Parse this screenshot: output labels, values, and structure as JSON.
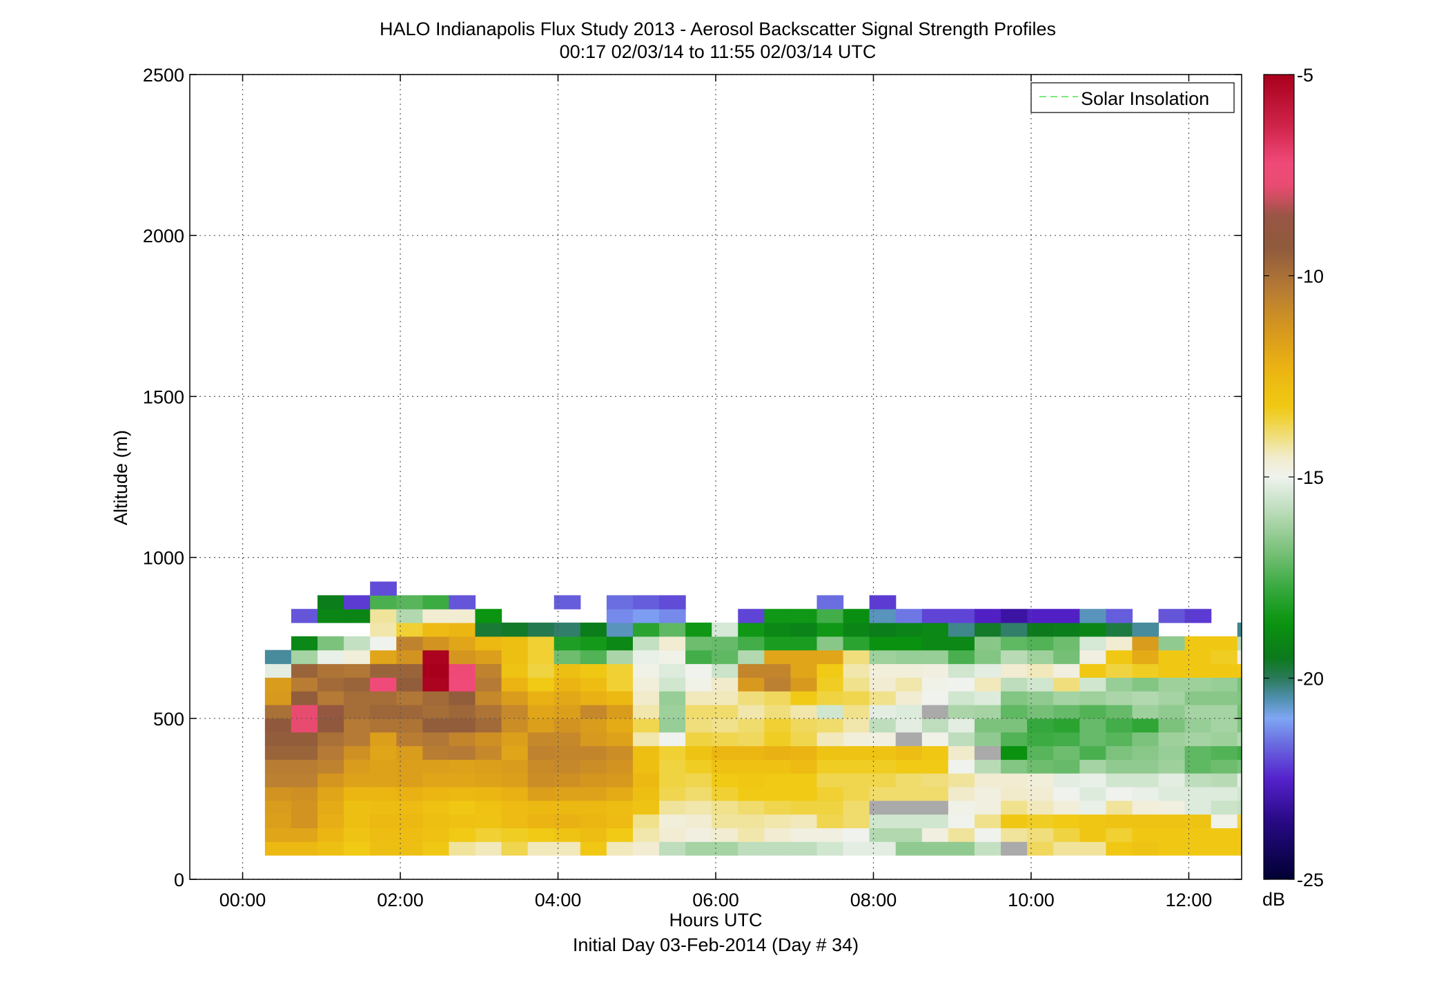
{
  "chart_data": {
    "type": "heatmap",
    "title": "HALO Indianapolis Flux Study 2013 - Aerosol Backscatter Signal Strength Profiles",
    "subtitle": "00:17 02/03/14 to 11:55 02/03/14  UTC",
    "xlabel": "Hours UTC",
    "xlabel2": "Initial Day 03-Feb-2014 (Day # 34)",
    "ylabel": "Altitude (m)",
    "xlim": [
      -0.67,
      12.67
    ],
    "ylim": [
      0,
      2500
    ],
    "x_ticks": [
      0,
      2,
      4,
      6,
      8,
      10,
      12
    ],
    "x_tick_labels": [
      "00:00",
      "02:00",
      "04:00",
      "06:00",
      "08:00",
      "10:00",
      "12:00"
    ],
    "y_ticks": [
      0,
      500,
      1000,
      1500,
      2000,
      2500
    ],
    "y_tick_labels": [
      "0",
      "500",
      "1000",
      "1500",
      "2000",
      "2500"
    ],
    "grid": true,
    "legend": {
      "entries": [
        "Solar Insolation"
      ],
      "placement": "top-right",
      "line_color": "#7ae87a"
    },
    "colorbar": {
      "label": "dB",
      "range": [
        -25,
        -5
      ],
      "ticks": [
        -5,
        -10,
        -15,
        -20,
        -25
      ],
      "tick_labels": [
        "-5",
        "-10",
        "-15",
        "-20",
        "-25"
      ]
    },
    "time_start_hours": 0.283,
    "time_step_hours": 0.3333,
    "altitude_bottom_m": 75,
    "altitude_step_m": 42.5,
    "z_units": "dB",
    "rows_bottom_to_top": [
      [
        -12.5,
        -12.5,
        -12.8,
        -13.3,
        -12.8,
        -12.8,
        -13.2,
        -14.2,
        -14.4,
        -13.7,
        -14.4,
        -14.4,
        -13.2,
        -14.4,
        -14.6,
        -15.8,
        -16.2,
        -16.2,
        -15.8,
        -15.8,
        -15.8,
        -15.5,
        -15.2,
        -15.2,
        -16.5,
        -16.5,
        -16.5,
        -15.7,
        -14.5,
        -13.8,
        -14.2,
        -14.2,
        -13.2,
        -13.0,
        -13.2,
        -13.2,
        -13.2,
        -13.2
      ],
      [
        -11.8,
        -11.8,
        -12.4,
        -13.0,
        -12.7,
        -12.7,
        -12.9,
        -13.3,
        -13.5,
        -13.4,
        -13.3,
        -13.0,
        -12.7,
        -13.3,
        -14.3,
        -14.6,
        -14.8,
        -14.6,
        -14.3,
        -14.6,
        -14.8,
        -14.8,
        -15.0,
        -16.0,
        -16.0,
        -14.8,
        -14.2,
        -15.0,
        -14.2,
        -14.0,
        -13.6,
        -13.1,
        -13.5,
        -13.2,
        -13.2,
        -13.2,
        -13.2,
        -13.2
      ],
      [
        -11.6,
        -11.2,
        -12.1,
        -12.8,
        -12.5,
        -12.5,
        -12.8,
        -12.9,
        -13.0,
        -12.6,
        -12.3,
        -12.2,
        -12.4,
        -12.6,
        -14.1,
        -14.7,
        -14.6,
        -14.2,
        -14.2,
        -14.3,
        -14.4,
        -13.7,
        -13.9,
        -15.5,
        -15.5,
        -15.5,
        -15.0,
        -14.1,
        -13.2,
        -13.4,
        -13.3,
        -13.1,
        -13.0,
        -13.0,
        -13.0,
        -13.0,
        -14.9,
        -13.6
      ],
      [
        -11.5,
        -11.2,
        -12.0,
        -12.8,
        -12.7,
        -12.6,
        -12.9,
        -13.2,
        -12.9,
        -12.6,
        -12.5,
        -12.5,
        -12.5,
        -12.7,
        -13.0,
        -14.2,
        -14.3,
        -14.1,
        -13.9,
        -13.7,
        -13.6,
        -13.6,
        -13.9,
        -14.7,
        -14.7,
        -14.7,
        -14.9,
        -14.8,
        -14.1,
        -14.4,
        -14.7,
        -15.1,
        -14.2,
        -14.7,
        -14.8,
        -15.3,
        -15.6,
        -15.7
      ],
      [
        -11.2,
        -11.1,
        -11.8,
        -12.4,
        -12.4,
        -12.2,
        -12.4,
        -12.5,
        -12.4,
        -12.2,
        -11.6,
        -11.7,
        -11.7,
        -12.0,
        -12.8,
        -13.7,
        -13.9,
        -13.5,
        -13.3,
        -13.3,
        -13.3,
        -13.5,
        -13.7,
        -13.9,
        -13.9,
        -13.9,
        -14.5,
        -14.8,
        -14.5,
        -14.6,
        -15.0,
        -15.3,
        -15.0,
        -15.1,
        -15.3,
        -15.3,
        -15.3,
        -15.5
      ],
      [
        -10.5,
        -10.5,
        -11.3,
        -11.7,
        -11.7,
        -11.6,
        -11.8,
        -11.8,
        -11.7,
        -11.6,
        -11.0,
        -11.1,
        -11.3,
        -11.4,
        -12.5,
        -13.6,
        -13.7,
        -13.3,
        -13.2,
        -13.3,
        -13.3,
        -13.7,
        -13.7,
        -13.7,
        -13.9,
        -14.0,
        -14.2,
        -14.6,
        -14.6,
        -14.7,
        -15.2,
        -15.1,
        -15.5,
        -15.5,
        -15.2,
        -15.8,
        -15.9,
        -15.2
      ],
      [
        -10.4,
        -10.4,
        -10.6,
        -11.5,
        -11.7,
        -11.6,
        -11.6,
        -11.7,
        -11.6,
        -11.5,
        -10.9,
        -10.8,
        -11.0,
        -11.2,
        -12.8,
        -13.6,
        -13.4,
        -12.9,
        -12.9,
        -12.9,
        -12.6,
        -13.4,
        -13.4,
        -13.4,
        -13.3,
        -13.3,
        -15.0,
        -15.9,
        -16.7,
        -17.0,
        -17.1,
        -16.2,
        -16.5,
        -16.5,
        -16.3,
        -17.2,
        -17.0,
        -16.8
      ],
      [
        -9.6,
        -9.6,
        -10.3,
        -11.1,
        -11.8,
        -11.5,
        -10.4,
        -10.3,
        -10.8,
        -11.8,
        -10.6,
        -10.7,
        -10.7,
        -11.0,
        -12.8,
        -13.5,
        -13.0,
        -12.4,
        -12.4,
        -12.2,
        -12.3,
        -13.0,
        -13.0,
        -13.0,
        -12.7,
        -13.2,
        -14.5,
        -16.2,
        -18.7,
        -17.3,
        -17.0,
        -17.5,
        -16.8,
        -16.6,
        -16.4,
        -17.2,
        -17.4,
        -17.6
      ],
      [
        -9.4,
        -9.4,
        -10.0,
        -10.3,
        -11.6,
        -10.4,
        -10.2,
        -10.7,
        -11.1,
        -11.6,
        -10.8,
        -10.8,
        -11.4,
        -11.7,
        -14.3,
        -15.0,
        -13.6,
        -13.7,
        -13.8,
        -13.4,
        -13.7,
        -14.4,
        -14.7,
        -14.8,
        -14.9,
        -14.9,
        -15.8,
        -16.5,
        -17.4,
        -17.7,
        -17.6,
        -17.1,
        -17.3,
        -16.8,
        -16.3,
        -16.2,
        -16.3,
        -16.0
      ],
      [
        -9.2,
        -7.8,
        -9.2,
        -10.3,
        -10.1,
        -10.1,
        -9.4,
        -9.4,
        -9.8,
        -11.0,
        -11.6,
        -11.2,
        -11.5,
        -12.0,
        -13.7,
        -16.4,
        -14.0,
        -14.1,
        -13.9,
        -13.5,
        -13.8,
        -13.9,
        -14.3,
        -15.8,
        -15.2,
        -15.8,
        -15.2,
        -16.8,
        -16.8,
        -17.8,
        -18.0,
        -17.1,
        -17.6,
        -17.9,
        -16.8,
        -16.4,
        -16.2,
        -16.7
      ],
      [
        -10.0,
        -7.8,
        -8.9,
        -9.9,
        -9.7,
        -9.7,
        -9.9,
        -9.7,
        -10.1,
        -10.8,
        -11.8,
        -11.6,
        -10.8,
        -11.5,
        -14.3,
        -16.3,
        -13.9,
        -13.9,
        -14.3,
        -14.0,
        -14.3,
        -15.5,
        -14.1,
        -15.2,
        -15.3,
        -16.0,
        -16.1,
        -16.2,
        -17.2,
        -16.9,
        -17.1,
        -17.4,
        -17.1,
        -16.3,
        -16.5,
        -16.2,
        -16.2,
        -16.9
      ],
      [
        -11.4,
        -9.4,
        -10.3,
        -9.9,
        -9.9,
        -10.2,
        -9.8,
        -9.4,
        -10.8,
        -11.5,
        -12.2,
        -11.9,
        -12.2,
        -12.5,
        -14.5,
        -16.4,
        -14.4,
        -14.4,
        -14.0,
        -13.8,
        -13.3,
        -13.6,
        -13.7,
        -14.1,
        -14.6,
        -15.0,
        -15.5,
        -15.3,
        -16.7,
        -16.5,
        -16.2,
        -16.3,
        -16.1,
        -16.0,
        -16.2,
        -16.6,
        -16.6,
        -16.7
      ],
      [
        -11.5,
        -10.4,
        -9.8,
        -9.6,
        -7.2,
        -9.4,
        -5.1,
        -7.2,
        -10.3,
        -12.3,
        -13.3,
        -12.3,
        -12.7,
        -13.5,
        -14.7,
        -15.5,
        -14.9,
        -14.5,
        -11.4,
        -10.5,
        -11.4,
        -13.4,
        -14.1,
        -14.6,
        -14.3,
        -14.9,
        -15.0,
        -14.4,
        -15.8,
        -15.5,
        -14.0,
        -15.5,
        -16.4,
        -16.7,
        -16.3,
        -16.3,
        -16.4,
        -16.8
      ],
      [
        -15.2,
        -9.6,
        -10.1,
        -10.2,
        -9.6,
        -9.6,
        -5.0,
        -7.4,
        -10.6,
        -13.0,
        -13.6,
        -12.8,
        -13.2,
        -13.5,
        -14.9,
        -15.3,
        -15.0,
        -15.6,
        -10.7,
        -10.7,
        -11.8,
        -13.3,
        -14.3,
        -14.7,
        -14.7,
        -14.8,
        -15.5,
        -15.2,
        -14.6,
        -14.4,
        -14.8,
        -13.2,
        -13.6,
        -13.4,
        -13.2,
        -13.2,
        -13.2,
        -13.2
      ],
      [
        -20.4,
        -16.2,
        -15.1,
        -14.7,
        -11.8,
        -11.2,
        -5.1,
        -11.3,
        -11.6,
        -12.8,
        -13.5,
        -17.0,
        -17.4,
        -16.1,
        -15.1,
        -14.9,
        -17.6,
        -17.2,
        -16.0,
        -11.8,
        -11.8,
        -11.8,
        -14.0,
        -16.3,
        -16.4,
        -16.4,
        -17.5,
        -16.7,
        -15.9,
        -16.3,
        -16.9,
        -14.8,
        -13.2,
        -12.0,
        -13.2,
        -13.2,
        -13.4,
        -14.8
      ],
      [
        null,
        -19.0,
        -16.8,
        -15.7,
        -15.0,
        -10.6,
        -11.2,
        -11.8,
        -12.5,
        -12.8,
        -13.5,
        -18.2,
        -18.4,
        -19.0,
        -15.7,
        -14.6,
        -17.0,
        -17.1,
        -17.6,
        -18.3,
        -18.3,
        -16.6,
        -18.0,
        -18.7,
        -18.7,
        -19.0,
        -19.0,
        -16.6,
        -17.2,
        -17.4,
        -17.0,
        -15.4,
        -14.6,
        -11.5,
        -16.5,
        -13.2,
        -13.2,
        -15.8
      ],
      [
        null,
        null,
        null,
        null,
        -14.3,
        -13.5,
        -12.6,
        -12.4,
        -19.7,
        -19.6,
        -19.9,
        -20.1,
        -19.4,
        -20.6,
        -18.0,
        -17.2,
        -18.5,
        -15.4,
        -18.5,
        -19.0,
        -19.2,
        -18.5,
        -19.1,
        -19.4,
        -19.2,
        -19.0,
        -20.3,
        -19.6,
        -20.1,
        -19.5,
        -19.4,
        -19.1,
        -19.8,
        -20.4,
        null,
        null,
        null,
        -20.3
      ],
      [
        null,
        -21.9,
        -19.1,
        -19.1,
        -14.2,
        -16.0,
        -14.6,
        -14.6,
        -18.6,
        null,
        null,
        null,
        null,
        -21.3,
        -21.1,
        -21.3,
        null,
        null,
        -22.1,
        -18.5,
        -18.5,
        -17.6,
        -18.8,
        -20.6,
        -21.5,
        -22.1,
        -22.1,
        -22.6,
        -23.1,
        -22.6,
        -22.6,
        -20.6,
        -21.8,
        null,
        -21.9,
        -22.2,
        null,
        null
      ],
      [
        null,
        null,
        -19.4,
        -22.2,
        -17.5,
        -17.3,
        -17.7,
        -21.9,
        null,
        null,
        null,
        -21.8,
        null,
        -21.6,
        -21.8,
        -22.0,
        null,
        null,
        null,
        null,
        null,
        -21.6,
        null,
        -22.2,
        null,
        null,
        null,
        null,
        null,
        null,
        null,
        null,
        null,
        null,
        null,
        null,
        null,
        null
      ],
      [
        null,
        null,
        null,
        null,
        -22.0,
        null,
        null,
        null,
        null,
        null,
        null,
        null,
        null,
        null,
        null,
        null,
        null,
        null,
        null,
        null,
        null,
        null,
        null,
        null,
        null,
        null,
        null,
        null,
        null,
        null,
        null,
        null,
        null,
        null,
        null,
        null,
        null,
        null
      ]
    ],
    "missing_cells": [
      [
        0,
        28
      ],
      [
        3,
        23
      ],
      [
        3,
        24
      ],
      [
        3,
        25
      ],
      [
        7,
        27
      ],
      [
        8,
        24
      ],
      [
        10,
        25
      ]
    ],
    "missing_color": "#aaaaaa"
  }
}
